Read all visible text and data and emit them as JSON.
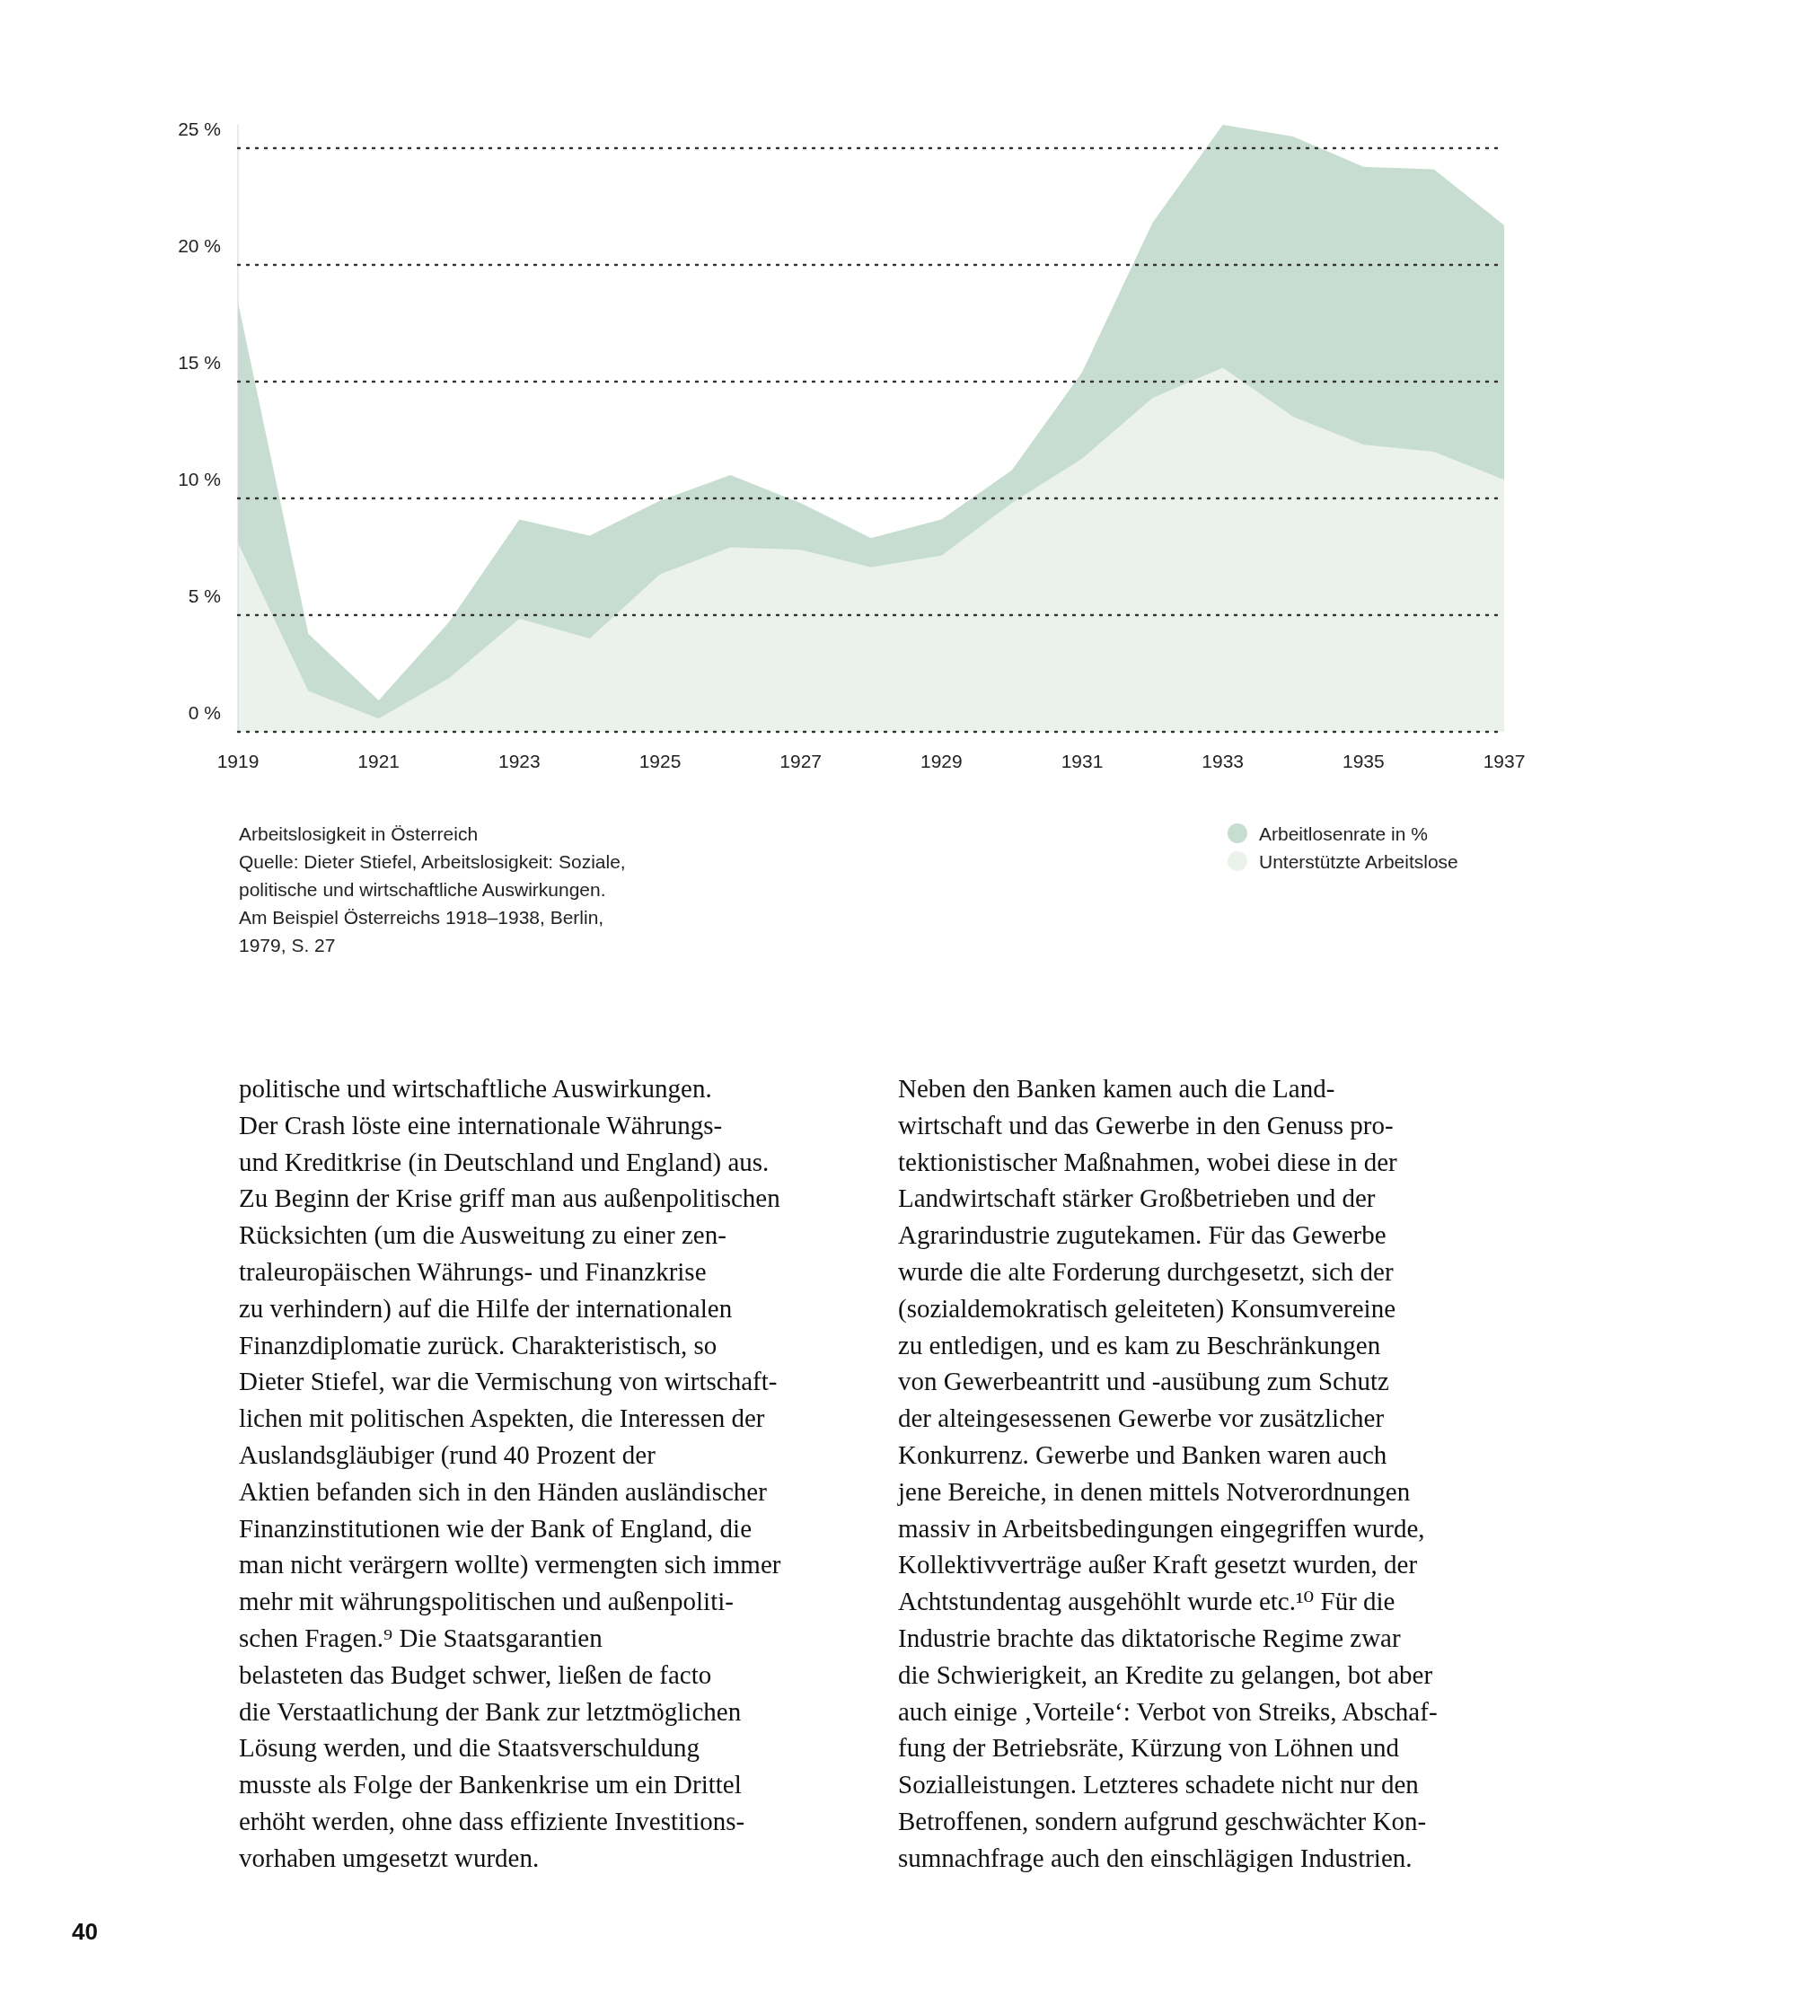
{
  "chart_data": {
    "type": "area",
    "title": "Arbeitslosigkeit in Österreich",
    "x": [
      1919,
      1920,
      1921,
      1922,
      1923,
      1924,
      1925,
      1926,
      1927,
      1928,
      1929,
      1930,
      1931,
      1932,
      1933,
      1934,
      1935,
      1936,
      1937
    ],
    "series": [
      {
        "name": "Arbeitlosenrate in %",
        "color": "#c8ddd1",
        "values": [
          18.4,
          4.2,
          1.35,
          4.7,
          9.1,
          8.4,
          9.9,
          11.0,
          9.8,
          8.3,
          9.1,
          11.2,
          15.4,
          21.8,
          26.0,
          25.5,
          24.2,
          24.1,
          21.7
        ]
      },
      {
        "name": "Unterstützte Arbeitslose",
        "color": "#eaf2eb",
        "values": [
          8.1,
          1.75,
          0.57,
          2.3,
          4.85,
          4.0,
          6.75,
          7.9,
          7.8,
          7.05,
          7.55,
          9.8,
          11.7,
          14.3,
          15.6,
          13.5,
          12.3,
          12.0,
          10.8
        ]
      }
    ],
    "xlim": [
      1919,
      1937
    ],
    "xticks": [
      1919,
      1921,
      1923,
      1925,
      1927,
      1929,
      1931,
      1933,
      1935,
      1937
    ],
    "ylim": [
      0,
      26
    ],
    "yticks": [
      {
        "value": 0,
        "label": "0 %"
      },
      {
        "value": 5,
        "label": "5 %"
      },
      {
        "value": 10,
        "label": "10 %"
      },
      {
        "value": 15,
        "label": "15 %"
      },
      {
        "value": 20,
        "label": "20 %"
      },
      {
        "value": 25,
        "label": "25 %"
      }
    ],
    "grid": "y",
    "line_style": "dotted",
    "legend": "bottom right",
    "annotations": [
      "Quelle: Dieter Stiefel, Arbeitslosigkeit: Soziale,\npolitische und wirtschaftliche Auswirkungen.\nAm Beispiel Österreichs 1918–1938, Berlin,\n1979, S. 27",
      "politische und wirtschaftliche Auswirkungen.\nDer Crash löste eine internationale Währungs-\nund Kreditkrise (in Deutschland und England) aus.\nZu Beginn der Krise griff man aus außenpolitischen\nRücksichten (um die Ausweitung zu einer zen-\ntraleuropäischen Währungs- und Finanzkrise\nzu verhindern) auf die Hilfe der internationalen\nFinanzdiplomatie zurück. Charakteristisch, so\nDieter Stiefel, war die Vermischung von wirtschaft-\nlichen mit politischen Aspekten, die Interessen der\nAuslandsgläubiger (rund 40 Prozent der\nAktien befanden sich in den Händen ausländischer\nFinanzinstitutionen wie der Bank of England, die\nman nicht verärgern wollte) vermengten sich immer\nmehr mit währungspolitischen und außenpoliti-\nschen Fragen.⁹ Die Staatsgarantien\nbelasteten das Budget schwer, ließen de facto\ndie Verstaatlichung der Bank zur letztmöglichen\nLösung werden, und die Staatsverschuldung\nmusste als Folge der Bankenkrise um ein Drittel\nerhöht werden, ohne dass effiziente Investitions-\nvorhaben umgesetzt wurden.",
      "Neben den Banken kamen auch die Land-\nwirtschaft und das Gewerbe in den Genuss pro-\ntektionistischer Maßnahmen, wobei diese in der\nLandwirtschaft stärker Großbetrieben und der\nAgrarindustrie zugutekamen. Für das Gewerbe\nwurde die alte Forderung durchgesetzt, sich der\n(sozialdemokratisch geleiteten) Konsumvereine\nzu entledigen, und es kam zu Beschränkungen\nvon Gewerbeantritt und -ausübung zum Schutz\nder alteingesessenen Gewerbe vor zusätzlicher\nKonkurrenz. Gewerbe und Banken waren auch\njene Bereiche, in denen mittels Notverordnungen\nmassiv in Arbeitsbedingungen eingegriffen wurde,\nKollektivverträge außer Kraft gesetzt wurden, der\nAchtstundentag ausgehöhlt wurde etc.¹⁰ Für die\nIndustrie brachte das diktatorische Regime zwar\ndie Schwierigkeit, an Kredite zu gelangen, bot aber\nauch einige ‚Vorteile‘: Verbot von Streiks, Abschaf-\nfung der Betriebsräte, Kürzung von Löhnen und\nSozialleistungen. Letzteres schadete nicht nur den\nBetroffenen, sondern aufgrund geschwächter Kon-\nsumnachfrage auch den einschlägigen Industrien.",
      "40"
    ]
  }
}
